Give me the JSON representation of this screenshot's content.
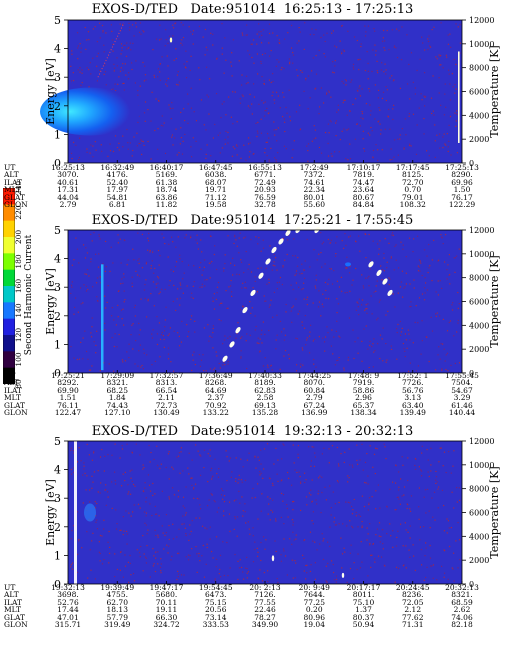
{
  "colorbar": {
    "label": "Second Harmonic Current",
    "ticks": [
      "240",
      "220",
      "200",
      "180",
      "160",
      "140",
      "120",
      "100",
      "80"
    ],
    "colors": [
      "#ff1a00",
      "#ff8c00",
      "#ffd200",
      "#f0ff30",
      "#7cff00",
      "#00d838",
      "#00c8c8",
      "#1878ff",
      "#2020e0",
      "#10108c",
      "#300040",
      "#000000"
    ]
  },
  "chart_data": [
    {
      "type": "heatmap",
      "title": "EXOS-D/TED   Date:951014  16:25:13 - 17:25:13",
      "ylabel": "Energy [eV]",
      "ylabel_right": "Temperature [K]",
      "ylim": [
        0,
        5
      ],
      "y_ticks": [
        "0",
        "1",
        "2",
        "3",
        "4",
        "5"
      ],
      "ylim_right": [
        0,
        12000
      ],
      "right_ticks": [
        "0",
        "2000",
        "4000",
        "6000",
        "8000",
        "10000",
        "12000"
      ],
      "background_color": "#3030c8",
      "rows": [
        {
          "label": "UT",
          "values": [
            "16:25:13",
            "16:32:49",
            "16:40:17",
            "16:47:45",
            "16:55:13",
            "17:2:49",
            "17:10:17",
            "17:17:45",
            "17:25:13"
          ]
        },
        {
          "label": "ALT",
          "values": [
            "3070.",
            "4176.",
            "5169.",
            "6038.",
            "6771.",
            "7372.",
            "7819.",
            "8125.",
            "8290."
          ]
        },
        {
          "label": "ILAT",
          "values": [
            "40.61",
            "52.40",
            "61.38",
            "68.07",
            "72.49",
            "74.61",
            "74.47",
            "72.70",
            "69.96"
          ]
        },
        {
          "label": "MLT",
          "values": [
            "17.31",
            "17.97",
            "18.74",
            "19.71",
            "20.93",
            "22.34",
            "23.64",
            "0.70",
            "1.50"
          ]
        },
        {
          "label": "GLAT",
          "values": [
            "44.04",
            "54.81",
            "63.86",
            "71.12",
            "76.59",
            "80.01",
            "80.67",
            "79.01",
            "76.17"
          ]
        },
        {
          "label": "GLON",
          "values": [
            "2.79",
            "6.81",
            "11.82",
            "19.58",
            "32.78",
            "55.60",
            "84.84",
            "108.32",
            "122.29"
          ]
        }
      ]
    },
    {
      "type": "heatmap",
      "title": "EXOS-D/TED   Date:951014  17:25:21 - 17:55:45",
      "ylabel": "Energy [eV]",
      "ylabel_right": "Temperature [K]",
      "ylim": [
        0,
        5
      ],
      "y_ticks": [
        "0",
        "1",
        "2",
        "3",
        "4",
        "5"
      ],
      "ylim_right": [
        0,
        12000
      ],
      "right_ticks": [
        "0",
        "2000",
        "4000",
        "6000",
        "8000",
        "10000",
        "12000"
      ],
      "background_color": "#3030c8",
      "rows": [
        {
          "label": "UT",
          "values": [
            "17:25:21",
            "17:29:09",
            "17:32:57",
            "17:36:49",
            "17:40:33",
            "17:44:25",
            "17:48: 9",
            "17:52: 1",
            "17:55:45"
          ]
        },
        {
          "label": "ALT",
          "values": [
            "8292.",
            "8321.",
            "8313.",
            "8268.",
            "8189.",
            "8070.",
            "7919.",
            "7726.",
            "7504."
          ]
        },
        {
          "label": "ILAT",
          "values": [
            "69.90",
            "68.25",
            "66.54",
            "64.69",
            "62.83",
            "60.84",
            "58.86",
            "56.76",
            "54.67"
          ]
        },
        {
          "label": "MLT",
          "values": [
            "1.51",
            "1.84",
            "2.11",
            "2.37",
            "2.58",
            "2.79",
            "2.96",
            "3.13",
            "3.29"
          ]
        },
        {
          "label": "GLAT",
          "values": [
            "76.11",
            "74.43",
            "72.73",
            "70.92",
            "69.13",
            "67.24",
            "65.37",
            "63.40",
            "61.46"
          ]
        },
        {
          "label": "GLON",
          "values": [
            "122.47",
            "127.10",
            "130.49",
            "133.22",
            "135.28",
            "136.99",
            "138.34",
            "139.49",
            "140.44"
          ]
        }
      ]
    },
    {
      "type": "heatmap",
      "title": "EXOS-D/TED   Date:951014  19:32:13 - 20:32:13",
      "ylabel": "Energy [eV]",
      "ylabel_right": "Temperature [K]",
      "ylim": [
        0,
        5
      ],
      "y_ticks": [
        "0",
        "1",
        "2",
        "3",
        "4",
        "5"
      ],
      "ylim_right": [
        0,
        12000
      ],
      "right_ticks": [
        "0",
        "2000",
        "4000",
        "6000",
        "8000",
        "10000",
        "12000"
      ],
      "background_color": "#3030c8",
      "rows": [
        {
          "label": "UT",
          "values": [
            "19:32:13",
            "19:39:49",
            "19:47:17",
            "19:54:45",
            "20: 2:13",
            "20: 9:49",
            "20:17:17",
            "20:24:45",
            "20:32:13"
          ]
        },
        {
          "label": "ALT",
          "values": [
            "3698.",
            "4755.",
            "5680.",
            "6473.",
            "7126.",
            "7644.",
            "8011.",
            "8236.",
            "8321."
          ]
        },
        {
          "label": "ILAT",
          "values": [
            "52.76",
            "62.70",
            "70.11",
            "75.15",
            "77.55",
            "77.25",
            "75.10",
            "72.05",
            "68.59"
          ]
        },
        {
          "label": "MLT",
          "values": [
            "17.44",
            "18.13",
            "19.11",
            "20.56",
            "22.46",
            "0.20",
            "1.37",
            "2.12",
            "2.62"
          ]
        },
        {
          "label": "GLAT",
          "values": [
            "47.01",
            "57.79",
            "66.30",
            "73.14",
            "78.27",
            "80.96",
            "80.37",
            "77.62",
            "74.06"
          ]
        },
        {
          "label": "GLON",
          "values": [
            "315.71",
            "319.49",
            "324.72",
            "333.53",
            "349.90",
            "19.04",
            "50.94",
            "71.31",
            "82.18"
          ]
        }
      ]
    }
  ]
}
